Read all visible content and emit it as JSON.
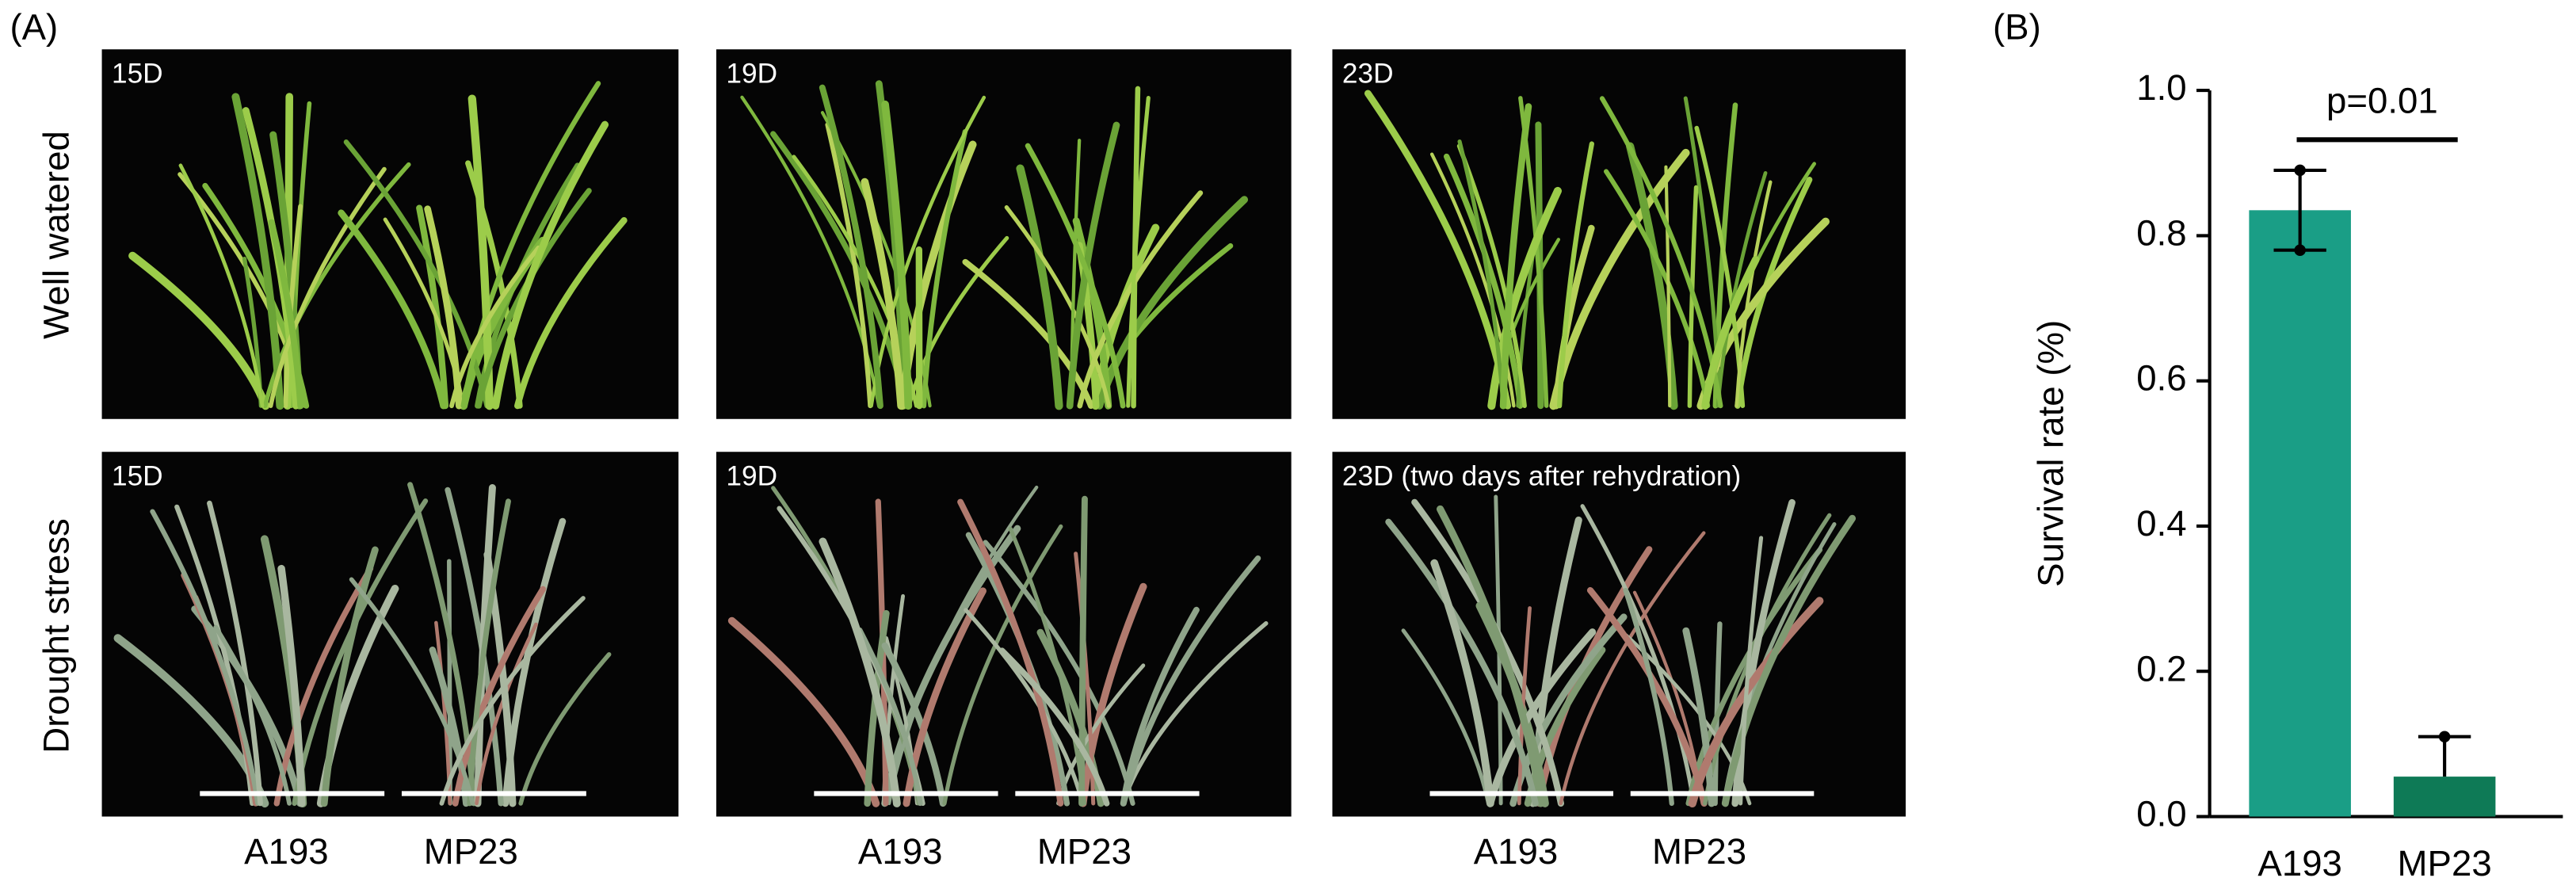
{
  "panel_a": {
    "label": "(A)",
    "rows": [
      "Well watered",
      "Drought stress"
    ],
    "photos": [
      {
        "caption": "15D",
        "x_labels": [
          "A193",
          "MP23"
        ]
      },
      {
        "caption": "19D",
        "x_labels": [
          "A193",
          "MP23"
        ]
      },
      {
        "caption": "23D",
        "x_labels": [
          "A193",
          "MP23"
        ]
      },
      {
        "caption": "15D"
      },
      {
        "caption": "19D"
      },
      {
        "caption": "23D (two days after rehydration)"
      }
    ]
  },
  "chart_data": {
    "type": "bar",
    "label": "(B)",
    "y_label": "Survival rate (%)",
    "annotation": "p=0.01",
    "categories": [
      "A193",
      "MP23"
    ],
    "values": [
      0.835,
      0.055
    ],
    "errors": [
      0.055,
      0.055
    ],
    "colors": [
      "#1a9e86",
      "#0e7a56"
    ],
    "ylim": [
      0,
      1.0
    ],
    "yticks": [
      {
        "value": 0,
        "label": "0.0"
      },
      0.2,
      0.4,
      0.6,
      0.8,
      {
        "value": 1,
        "label": "1.0"
      }
    ]
  }
}
